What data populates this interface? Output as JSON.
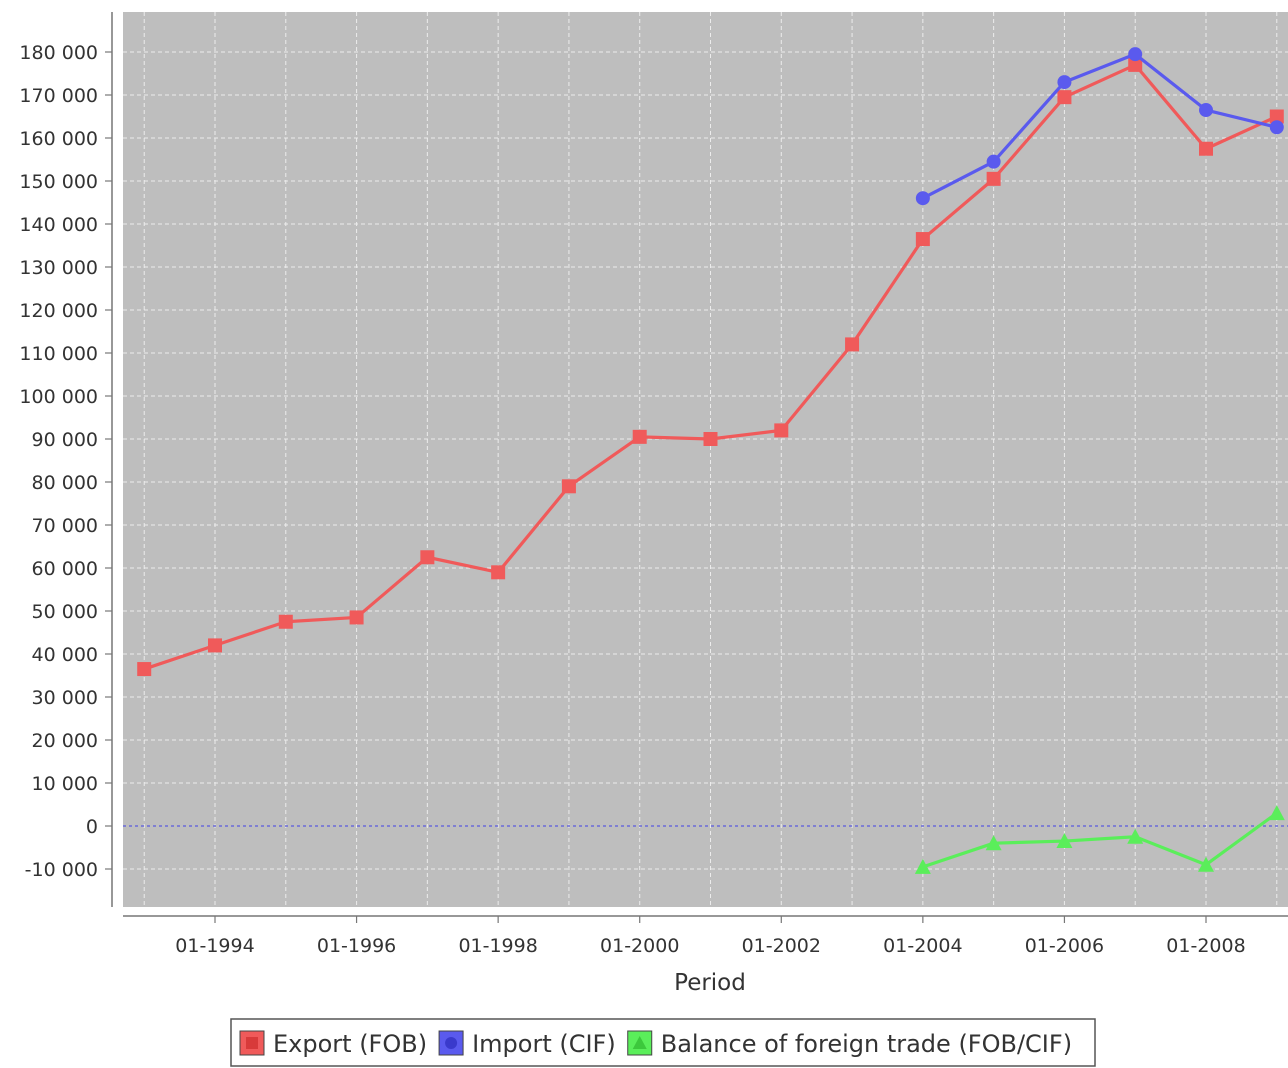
{
  "chart_data": {
    "type": "line",
    "xlabel": "Period",
    "ylabel": "",
    "ylim": [
      -20000,
      182000
    ],
    "yticks": [
      {
        "value": 180000,
        "label": "180 000"
      },
      {
        "value": 170000,
        "label": "170 000"
      },
      {
        "value": 160000,
        "label": "160 000"
      },
      {
        "value": 150000,
        "label": "150 000"
      },
      {
        "value": 140000,
        "label": "140 000"
      },
      {
        "value": 130000,
        "label": "130 000"
      },
      {
        "value": 120000,
        "label": "120 000"
      },
      {
        "value": 110000,
        "label": "110 000"
      },
      {
        "value": 100000,
        "label": "100 000"
      },
      {
        "value": 90000,
        "label": "90 000"
      },
      {
        "value": 80000,
        "label": "80 000"
      },
      {
        "value": 70000,
        "label": "70 000"
      },
      {
        "value": 60000,
        "label": "60 000"
      },
      {
        "value": 50000,
        "label": "50 000"
      },
      {
        "value": 40000,
        "label": "40 000"
      },
      {
        "value": 30000,
        "label": "30 000"
      },
      {
        "value": 20000,
        "label": "20 000"
      },
      {
        "value": 10000,
        "label": "10 000"
      },
      {
        "value": 0,
        "label": "0"
      },
      {
        "value": -10000,
        "label": "-10 000"
      }
    ],
    "xticks": [
      {
        "value": "01-1994",
        "label": "01-1994"
      },
      {
        "value": "01-1996",
        "label": "01-1996"
      },
      {
        "value": "01-1998",
        "label": "01-1998"
      },
      {
        "value": "01-2000",
        "label": "01-2000"
      },
      {
        "value": "01-2002",
        "label": "01-2002"
      },
      {
        "value": "01-2004",
        "label": "01-2004"
      },
      {
        "value": "01-2006",
        "label": "01-2006"
      },
      {
        "value": "01-2008",
        "label": "01-2008"
      }
    ],
    "grid": true,
    "legend_position": "bottom",
    "series": [
      {
        "name": "Export (FOB)",
        "color": "#f05a5a",
        "marker": "square",
        "points": [
          {
            "x": "01-1993",
            "y": 36500
          },
          {
            "x": "01-1994",
            "y": 42000
          },
          {
            "x": "01-1995",
            "y": 47500
          },
          {
            "x": "01-1996",
            "y": 48500
          },
          {
            "x": "01-1997",
            "y": 62500
          },
          {
            "x": "01-1998",
            "y": 59000
          },
          {
            "x": "01-1999",
            "y": 79000
          },
          {
            "x": "01-2000",
            "y": 90500
          },
          {
            "x": "01-2001",
            "y": 90000
          },
          {
            "x": "01-2002",
            "y": 92000
          },
          {
            "x": "01-2003",
            "y": 112000
          },
          {
            "x": "01-2004",
            "y": 136500
          },
          {
            "x": "01-2005",
            "y": 150500
          },
          {
            "x": "01-2006",
            "y": 169500
          },
          {
            "x": "01-2007",
            "y": 177000
          },
          {
            "x": "01-2008",
            "y": 157500
          },
          {
            "x": "01-2009",
            "y": 165000
          }
        ]
      },
      {
        "name": "Import (CIF)",
        "color": "#5a5aee",
        "marker": "circle",
        "points": [
          {
            "x": "01-2004",
            "y": 146000
          },
          {
            "x": "01-2005",
            "y": 154500
          },
          {
            "x": "01-2006",
            "y": 173000
          },
          {
            "x": "01-2007",
            "y": 179500
          },
          {
            "x": "01-2008",
            "y": 166500
          },
          {
            "x": "01-2009",
            "y": 162500
          }
        ]
      },
      {
        "name": "Balance of foreign trade (FOB/CIF)",
        "color": "#5aee5a",
        "marker": "triangle",
        "points": [
          {
            "x": "01-2004",
            "y": -9500
          },
          {
            "x": "01-2005",
            "y": -4000
          },
          {
            "x": "01-2006",
            "y": -3500
          },
          {
            "x": "01-2007",
            "y": -2500
          },
          {
            "x": "01-2008",
            "y": -9000
          },
          {
            "x": "01-2009",
            "y": 3000
          }
        ]
      }
    ]
  }
}
